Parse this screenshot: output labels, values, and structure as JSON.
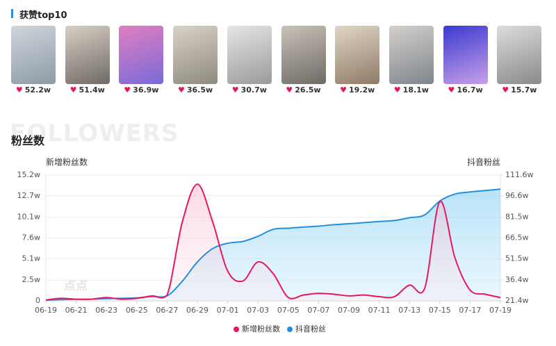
{
  "header": {
    "title": "获赞top10"
  },
  "top_likes": [
    "52.2w",
    "51.4w",
    "36.9w",
    "36.5w",
    "30.7w",
    "26.5w",
    "19.2w",
    "18.1w",
    "16.7w",
    "15.7w"
  ],
  "section": {
    "title": "粉丝数",
    "watermark": "FOLLOWERS",
    "logo": "点点"
  },
  "chart_data": {
    "type": "line",
    "y_label": "新增粉丝数",
    "y2_label": "抖音粉丝",
    "categories": [
      "06-19",
      null,
      "06-21",
      null,
      "06-23",
      null,
      "06-25",
      null,
      "06-27",
      null,
      "06-29",
      null,
      "07-01",
      null,
      "07-03",
      null,
      "07-05",
      null,
      "07-07",
      null,
      "07-09",
      null,
      "07-11",
      null,
      "07-13",
      null,
      "07-15",
      null,
      "07-17",
      null,
      "07-19"
    ],
    "ylim": [
      0,
      15.2
    ],
    "yticks": [
      0,
      {
        "value": 2.5,
        "label": "2.5w"
      },
      {
        "value": 5.1,
        "label": "5.1w"
      },
      {
        "value": 7.6,
        "label": "7.6w"
      },
      {
        "value": 10.1,
        "label": "10.1w"
      },
      {
        "value": 12.7,
        "label": "12.7w"
      },
      {
        "value": 15.2,
        "label": "15.2w"
      }
    ],
    "y2lim": [
      21.4,
      111.6
    ],
    "y2ticks": [
      {
        "value": 21.4,
        "label": "21.4w"
      },
      {
        "value": 36.4,
        "label": "36.4w"
      },
      {
        "value": 51.5,
        "label": "51.5w"
      },
      {
        "value": 66.5,
        "label": "66.5w"
      },
      {
        "value": 81.5,
        "label": "81.5w"
      },
      {
        "value": 96.6,
        "label": "96.6w"
      },
      {
        "value": 111.6,
        "label": "111.6w"
      }
    ],
    "grid": true,
    "legend": "bottom",
    "series": [
      {
        "name": "新增粉丝数",
        "color": "#e8175d",
        "axis": "y",
        "values": [
          0.1,
          0.3,
          0.2,
          0.2,
          0.4,
          0.2,
          0.3,
          0.6,
          0.7,
          9.5,
          14.1,
          9.6,
          3.6,
          2.4,
          4.7,
          3.3,
          0.4,
          0.7,
          0.9,
          0.8,
          0.6,
          0.7,
          0.5,
          0.5,
          1.9,
          1.5,
          12.0,
          5.2,
          1.3,
          0.8,
          0.4
        ]
      },
      {
        "name": "抖音粉丝",
        "color": "#1f8fe0",
        "axis": "y2",
        "values": [
          21.9,
          22.3,
          22.5,
          22.6,
          23.0,
          23.2,
          23.5,
          24.5,
          25.0,
          35.4,
          49.3,
          58.8,
          62.7,
          64.0,
          67.7,
          72.7,
          73.5,
          74.3,
          75.0,
          76.0,
          76.7,
          77.5,
          78.3,
          79.0,
          81.0,
          83.0,
          93.0,
          98.0,
          99.5,
          100.5,
          101.5
        ]
      }
    ]
  }
}
